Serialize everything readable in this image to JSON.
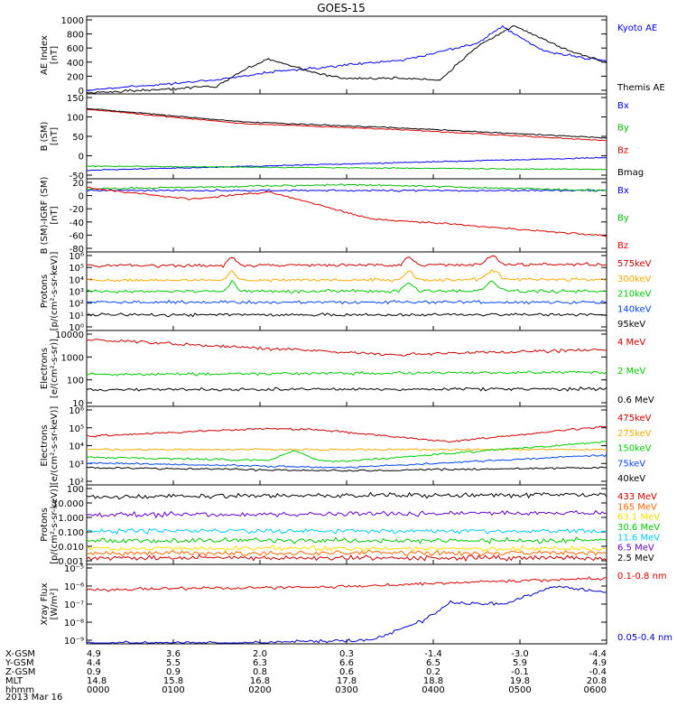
{
  "title": "GOES-15",
  "date_label": "2013 Mar 16",
  "chart_data": [
    {
      "type": "line",
      "ylabel": "AE Index\n[nT]",
      "ytick_labels": [
        "1000",
        "800",
        "600",
        "400",
        "200",
        "0"
      ],
      "legend": [
        {
          "name": "Kyoto AE",
          "color": "#0000ff"
        },
        {
          "name": "Themis AE",
          "color": "#000000"
        }
      ]
    },
    {
      "type": "line",
      "ylabel": "B (SM)\n[nT]",
      "ytick_labels": [
        "150",
        "100",
        "50",
        "0",
        "-50"
      ],
      "legend": [
        {
          "name": "Bx",
          "color": "#0000ff"
        },
        {
          "name": "By",
          "color": "#00bb00"
        },
        {
          "name": "Bz",
          "color": "#dd0000"
        },
        {
          "name": "Bmag",
          "color": "#000000"
        }
      ]
    },
    {
      "type": "line",
      "ylabel": "B (SM)-IGRF (SM)\n[nT]",
      "ytick_labels": [
        "20",
        "0",
        "-20",
        "-40",
        "-60",
        "-80"
      ],
      "legend": [
        {
          "name": "Bx",
          "color": "#0000ff"
        },
        {
          "name": "By",
          "color": "#00bb00"
        },
        {
          "name": "Bz",
          "color": "#dd0000"
        }
      ]
    },
    {
      "type": "line",
      "ylabel": "Protons\n[p/(cm²-s-sr-keV)]",
      "scale": "log",
      "ytick_labels": [
        "10⁶",
        "10⁵",
        "10⁴",
        "10³",
        "10²",
        "10¹",
        "10⁰"
      ],
      "legend": [
        {
          "name": "575keV",
          "color": "#cc0000"
        },
        {
          "name": "300keV",
          "color": "#ffaa00"
        },
        {
          "name": "210keV",
          "color": "#00cc00"
        },
        {
          "name": "140keV",
          "color": "#0044ff"
        },
        {
          "name": "95keV",
          "color": "#000000"
        }
      ]
    },
    {
      "type": "line",
      "ylabel": "Electrons\n[e/(cm²-s-sr)]",
      "scale": "log",
      "ytick_labels": [
        "10000",
        "1000",
        "100",
        "10"
      ],
      "legend": [
        {
          "name": "4 MeV",
          "color": "#cc0000"
        },
        {
          "name": "2 MeV",
          "color": "#00cc00"
        },
        {
          "name": "0.6 MeV",
          "color": "#000000"
        }
      ]
    },
    {
      "type": "line",
      "ylabel": "Electrons\n[e/(cm²-s-sr-keV)]",
      "scale": "log",
      "ytick_labels": [
        "10⁶",
        "10⁵",
        "10⁴",
        "10³",
        "10²"
      ],
      "legend": [
        {
          "name": "475keV",
          "color": "#cc0000"
        },
        {
          "name": "275keV",
          "color": "#ffaa00"
        },
        {
          "name": "150keV",
          "color": "#00cc00"
        },
        {
          "name": "75keV",
          "color": "#0044ff"
        },
        {
          "name": "40keV",
          "color": "#000000"
        }
      ]
    },
    {
      "type": "line",
      "ylabel": "Protons\n[p/(cm²-s-sr-keV)]",
      "scale": "log",
      "ytick_labels": [
        "100",
        "10.000",
        "1.000",
        "0.100",
        "0.010",
        "0.001"
      ],
      "legend": [
        {
          "name": "433 MeV",
          "color": "#cc0000"
        },
        {
          "name": "165 MeV",
          "color": "#ff6600"
        },
        {
          "name": "63.1 MeV",
          "color": "#ffdd00"
        },
        {
          "name": "30.6 MeV",
          "color": "#00cc00"
        },
        {
          "name": "11.6 MeV",
          "color": "#00ccff"
        },
        {
          "name": "6.5 MeV",
          "color": "#6600cc"
        },
        {
          "name": "2.5 MeV",
          "color": "#000000"
        }
      ]
    },
    {
      "type": "line",
      "ylabel": "Xray Flux\n[W/m²]",
      "scale": "log",
      "ytick_labels": [
        "10⁻⁵",
        "10⁻⁶",
        "10⁻⁷",
        "10⁻⁸",
        "10⁻⁹"
      ],
      "legend": [
        {
          "name": "0.1-0.8 nm",
          "color": "#dd0000"
        },
        {
          "name": "0.05-0.4 nm",
          "color": "#0000cc"
        }
      ]
    }
  ],
  "ephemeris": {
    "row_labels": [
      "X-GSM",
      "Y-GSM",
      "Z-GSM",
      "MLT",
      "hhmm"
    ],
    "columns": [
      [
        "4.9",
        "4.4",
        "0.9",
        "14.8",
        "0000"
      ],
      [
        "3.6",
        "5.5",
        "0.9",
        "15.8",
        "0100"
      ],
      [
        "2.0",
        "6.3",
        "0.8",
        "16.8",
        "0200"
      ],
      [
        "0.3",
        "6.6",
        "0.6",
        "17.8",
        "0300"
      ],
      [
        "-1.4",
        "6.5",
        "0.2",
        "18.8",
        "0400"
      ],
      [
        "-3.0",
        "5.9",
        "-0.1",
        "19.8",
        "0500"
      ],
      [
        "-4.4",
        "4.9",
        "-0.4",
        "20.8",
        "0600"
      ]
    ]
  }
}
